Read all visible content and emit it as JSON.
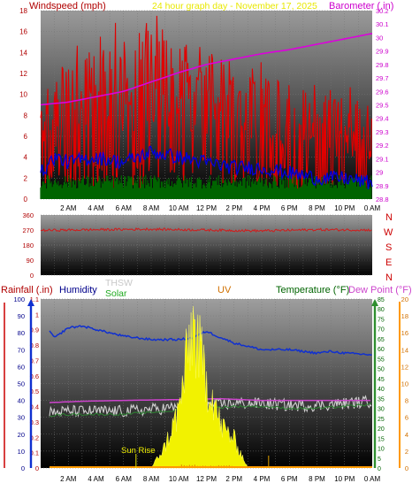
{
  "header": {
    "left": "Windspeed (mph)",
    "center": "24 hour graph day - November 17, 2025",
    "right": "Barometer (.in)"
  },
  "wind_panel_labels": [
    "N",
    "W",
    "S",
    "E",
    "N"
  ],
  "lower_header": {
    "rainfall": "Rainfall (.in)",
    "humidity": "Humidity",
    "thsw": "THSW",
    "solar": "Solar",
    "uv": "UV",
    "temperature": "Temperature (°F)",
    "dewpoint": "Dew Point (°F)"
  },
  "annotation": "Sun Rise",
  "x_ticks": [
    "2 AM",
    "4 AM",
    "6 AM",
    "8 AM",
    "10 AM",
    "12 PM",
    "2 PM",
    "4 PM",
    "6 PM",
    "8 PM",
    "10 PM",
    "0 AM"
  ],
  "colors": {
    "gust": "#e00000",
    "wind_speed": "#0000dd",
    "wind_low": "#006400",
    "barometer": "#dd00dd",
    "direction": "#cc2020",
    "humidity": "#1030d0",
    "thsw": "#d0d0d0",
    "temperature": "#2e7d32",
    "dewpoint": "#cc44cc",
    "solar": "#f2f200",
    "uv": "#e08000",
    "rain": "#ff9900"
  },
  "chart_data": [
    {
      "type": "line",
      "panel": "wind-barometer",
      "x_range_hours": [
        0,
        24
      ],
      "left_axis": {
        "label": "Windspeed (mph)",
        "ylim": [
          0,
          18
        ],
        "ticks": [
          0,
          2,
          4,
          6,
          8,
          10,
          12,
          14,
          16,
          18
        ]
      },
      "right_axis": {
        "label": "Barometer (.in)",
        "ylim": [
          28.8,
          30.2
        ],
        "ticks": [
          28.8,
          28.9,
          29,
          29.1,
          29.2,
          29.3,
          29.4,
          29.5,
          29.6,
          29.7,
          29.8,
          29.9,
          30,
          30.1,
          30.2
        ]
      },
      "series": [
        {
          "name": "Windspeed gust",
          "x": [
            0,
            2,
            4,
            6,
            8,
            10,
            12,
            14,
            16,
            18,
            20,
            22,
            24
          ],
          "values": [
            10,
            12,
            13,
            14,
            15,
            14,
            13,
            12,
            11,
            10,
            9,
            9,
            8
          ]
        },
        {
          "name": "Windspeed",
          "x": [
            0,
            1,
            2,
            4,
            6,
            8,
            10,
            12,
            14,
            16,
            18,
            20,
            22,
            24
          ],
          "values": [
            2.5,
            4,
            3.5,
            4,
            3.5,
            4.5,
            4,
            3.5,
            3,
            3,
            2.5,
            2,
            2,
            1.5
          ]
        },
        {
          "name": "Barometer",
          "x": [
            0,
            2,
            4,
            6,
            8,
            10,
            12,
            14,
            16,
            18,
            20,
            22,
            24
          ],
          "values": [
            29.5,
            29.52,
            29.56,
            29.6,
            29.67,
            29.74,
            29.8,
            29.84,
            29.88,
            29.91,
            29.95,
            29.99,
            30.03
          ]
        }
      ]
    },
    {
      "type": "line",
      "panel": "wind-direction",
      "x_range_hours": [
        0,
        24
      ],
      "ylim": [
        0,
        360
      ],
      "ticks": [
        0,
        90,
        180,
        270,
        360
      ],
      "series": [
        {
          "name": "Wind direction",
          "x": [
            0,
            4,
            8,
            12,
            16,
            20,
            24
          ],
          "values": [
            268,
            272,
            275,
            270,
            265,
            272,
            270
          ]
        }
      ]
    },
    {
      "type": "area",
      "panel": "humidity-temperature",
      "x_range_hours": [
        0,
        24
      ],
      "left_axis": {
        "label": "Humidity",
        "ylim": [
          0,
          100
        ],
        "ticks": [
          0,
          10,
          20,
          30,
          40,
          50,
          60,
          70,
          80,
          90,
          100
        ]
      },
      "rain_axis": {
        "label": "Rainfall (.in)",
        "ylim": [
          0,
          1.1
        ],
        "ticks": [
          0,
          0.1,
          0.2,
          0.3,
          0.4,
          0.5,
          0.6,
          0.7,
          0.8,
          0.9,
          1,
          1.1
        ]
      },
      "temperature_axis": {
        "label": "Temperature (°F)",
        "ylim": [
          0,
          85
        ],
        "ticks": [
          0,
          5,
          10,
          15,
          20,
          25,
          30,
          35,
          40,
          45,
          50,
          55,
          60,
          65,
          70,
          75,
          80,
          85
        ]
      },
      "dewpoint_axis": {
        "label": "Dew Point (°F)",
        "ylim": [
          0,
          20
        ],
        "ticks": [
          0,
          2,
          4,
          6,
          8,
          10,
          12,
          14,
          16,
          18,
          20
        ]
      },
      "series": [
        {
          "name": "Humidity",
          "x": [
            0,
            0.5,
            1,
            1.5,
            2,
            3,
            4,
            6,
            8,
            10,
            11,
            12,
            12.5,
            14,
            16,
            18,
            19,
            20,
            21,
            22,
            24
          ],
          "values": [
            86,
            83,
            77,
            80,
            83,
            84,
            82,
            78,
            76,
            76,
            77,
            81,
            79,
            74,
            70,
            70,
            69,
            68,
            69,
            68,
            67
          ]
        },
        {
          "name": "Temperature",
          "x": [
            0,
            2,
            4,
            6,
            8,
            10,
            12,
            14,
            16,
            18,
            20,
            22,
            24
          ],
          "values": [
            26,
            27,
            27,
            27,
            28,
            29,
            30,
            31,
            31,
            30,
            30,
            31,
            32
          ]
        },
        {
          "name": "Dew Point",
          "x": [
            0,
            3,
            6,
            10,
            13,
            16,
            19,
            21,
            24
          ],
          "values": [
            7.7,
            7.9,
            8.0,
            8.1,
            8.2,
            8.0,
            8.0,
            8.0,
            8.0
          ]
        },
        {
          "name": "Solar",
          "x": [
            8,
            9,
            10,
            10.5,
            11,
            11.5,
            12,
            12.5,
            13,
            14,
            14.5,
            15
          ],
          "values": [
            0,
            3,
            8,
            14,
            20,
            16,
            12,
            10,
            6,
            4,
            2,
            0
          ]
        }
      ],
      "annotations": [
        {
          "text": "Sun Rise",
          "x": 6.9
        }
      ]
    }
  ]
}
